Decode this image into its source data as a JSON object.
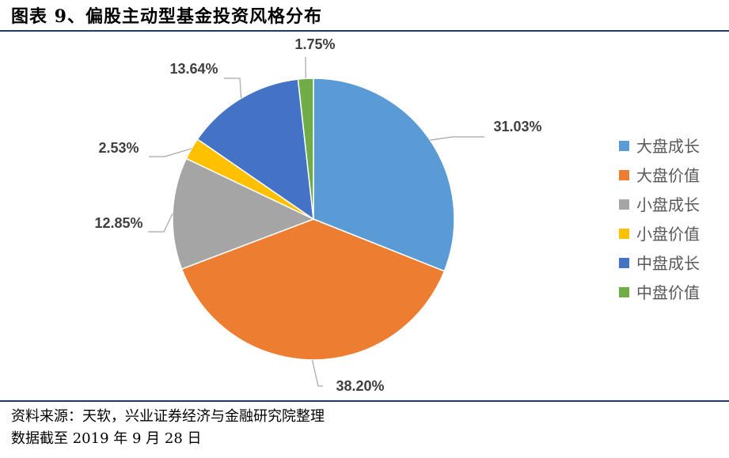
{
  "title": "图表 9、偏股主动型基金投资风格分布",
  "chart_data": {
    "type": "pie",
    "title": "",
    "legend_position": "right",
    "slices": [
      {
        "name": "大盘成长",
        "value": 31.03,
        "label": "31.03%",
        "color": "#5b9bd5"
      },
      {
        "name": "大盘价值",
        "value": 38.2,
        "label": "38.20%",
        "color": "#ed7d31"
      },
      {
        "name": "小盘成长",
        "value": 12.85,
        "label": "12.85%",
        "color": "#a5a5a5"
      },
      {
        "name": "小盘价值",
        "value": 2.53,
        "label": "2.53%",
        "color": "#ffc000"
      },
      {
        "name": "中盘成长",
        "value": 13.64,
        "label": "13.64%",
        "color": "#4472c4"
      },
      {
        "name": "中盘价值",
        "value": 1.75,
        "label": "1.75%",
        "color": "#70ad47"
      }
    ]
  },
  "footer": {
    "source": "资料来源：天软，兴业证券经济与金融研究院整理",
    "note": "数据截至 2019 年 9 月 28 日"
  }
}
